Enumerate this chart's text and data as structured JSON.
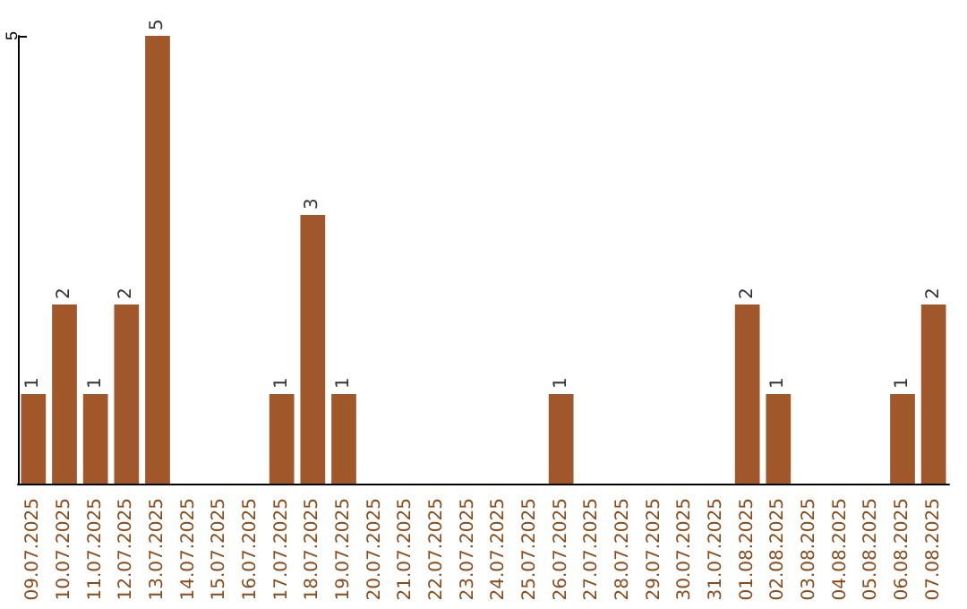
{
  "chart_data": {
    "type": "bar",
    "categories": [
      "09.07.2025",
      "10.07.2025",
      "11.07.2025",
      "12.07.2025",
      "13.07.2025",
      "14.07.2025",
      "15.07.2025",
      "16.07.2025",
      "17.07.2025",
      "18.07.2025",
      "19.07.2025",
      "20.07.2025",
      "21.07.2025",
      "22.07.2025",
      "23.07.2025",
      "24.07.2025",
      "25.07.2025",
      "26.07.2025",
      "27.07.2025",
      "28.07.2025",
      "29.07.2025",
      "30.07.2025",
      "31.07.2025",
      "01.08.2025",
      "02.08.2025",
      "03.08.2025",
      "04.08.2025",
      "05.08.2025",
      "06.08.2025",
      "07.08.2025"
    ],
    "values": [
      1,
      2,
      1,
      2,
      5,
      0,
      0,
      0,
      1,
      3,
      1,
      0,
      0,
      0,
      0,
      0,
      0,
      1,
      0,
      0,
      0,
      0,
      0,
      2,
      1,
      0,
      0,
      0,
      1,
      2
    ],
    "value_labels": [
      "1",
      "2",
      "1",
      "2",
      "5",
      null,
      null,
      null,
      "1",
      "3",
      "1",
      null,
      null,
      null,
      null,
      null,
      null,
      "1",
      null,
      null,
      null,
      null,
      null,
      "2",
      "1",
      null,
      null,
      null,
      "1",
      "2"
    ],
    "color": "#a0582a",
    "ylim": [
      0,
      5
    ],
    "yticks": [
      {
        "value": 0,
        "label": null
      },
      5
    ]
  }
}
